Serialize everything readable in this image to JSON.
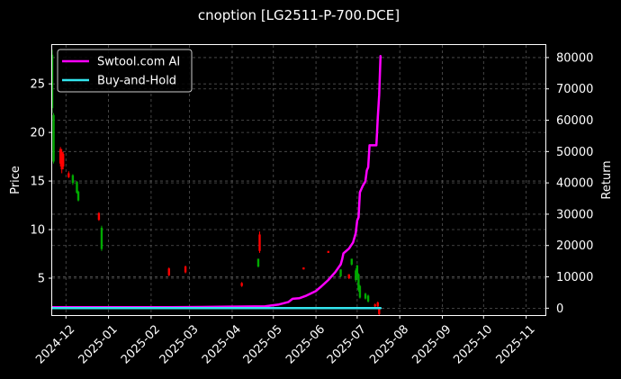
{
  "chart_data": {
    "type": "line",
    "title": "cnoption [LG2511-P-700.DCE]",
    "xlabel": "",
    "ylabel": "Price",
    "y2label": "Return",
    "x_ticks": [
      "2024-12",
      "2025-01",
      "2025-02",
      "2025-03",
      "2025-04",
      "2025-05",
      "2025-06",
      "2025-07",
      "2025-08",
      "2025-09",
      "2025-10",
      "2025-11"
    ],
    "xlim": [
      "2024-11-21",
      "2025-11-15"
    ],
    "ylim": [
      1.2,
      29.0
    ],
    "y_ticks": [
      5,
      10,
      15,
      20,
      25
    ],
    "y2lim": [
      -2200,
      84000
    ],
    "y2_ticks": [
      0,
      10000,
      20000,
      30000,
      40000,
      50000,
      60000,
      70000,
      80000
    ],
    "grid": true,
    "legend_position": "top-left",
    "colors": {
      "up": "#00aa00",
      "down": "#ff0000",
      "strategy": "#ff00ff",
      "buyhold": "#33e5ee",
      "background": "#000000",
      "grid": "#555555"
    },
    "series": [
      {
        "name": "Swtool.com AI",
        "axis": "right",
        "points": [
          [
            "2024-11-21",
            300
          ],
          [
            "2025-02-15",
            300
          ],
          [
            "2025-03-10",
            400
          ],
          [
            "2025-04-01",
            500
          ],
          [
            "2025-04-25",
            600
          ],
          [
            "2025-05-05",
            1200
          ],
          [
            "2025-05-12",
            2000
          ],
          [
            "2025-05-15",
            3000
          ],
          [
            "2025-05-20",
            3200
          ],
          [
            "2025-05-25",
            4000
          ],
          [
            "2025-06-01",
            5500
          ],
          [
            "2025-06-05",
            7000
          ],
          [
            "2025-06-10",
            9000
          ],
          [
            "2025-06-15",
            11500
          ],
          [
            "2025-06-19",
            14000
          ],
          [
            "2025-06-20",
            15500
          ],
          [
            "2025-06-21",
            17500
          ],
          [
            "2025-06-25",
            19000
          ],
          [
            "2025-06-28",
            21000
          ],
          [
            "2025-06-30",
            24000
          ],
          [
            "2025-07-01",
            28000
          ],
          [
            "2025-07-02",
            29000
          ],
          [
            "2025-07-03",
            37000
          ],
          [
            "2025-07-05",
            39000
          ],
          [
            "2025-07-07",
            40500
          ],
          [
            "2025-07-08",
            44000
          ],
          [
            "2025-07-09",
            45000
          ],
          [
            "2025-07-10",
            52000
          ],
          [
            "2025-07-15",
            52000
          ],
          [
            "2025-07-16",
            61000
          ],
          [
            "2025-07-17",
            68000
          ],
          [
            "2025-07-18",
            80500
          ]
        ]
      },
      {
        "name": "Buy-and-Hold",
        "axis": "right",
        "points": [
          [
            "2024-11-21",
            0
          ],
          [
            "2025-07-18",
            0
          ]
        ]
      }
    ],
    "candles": [
      {
        "date": "2024-11-21",
        "open": 22.5,
        "close": 28.0,
        "high": 28.5,
        "low": 22.0,
        "color": "up"
      },
      {
        "date": "2024-11-22",
        "open": 17.0,
        "close": 21.8,
        "high": 22.0,
        "low": 16.8,
        "color": "up"
      },
      {
        "date": "2024-11-27",
        "open": 18.3,
        "close": 16.8,
        "high": 18.5,
        "low": 16.5,
        "color": "down"
      },
      {
        "date": "2024-11-28",
        "open": 18.0,
        "close": 16.2,
        "high": 18.3,
        "low": 15.8,
        "color": "down"
      },
      {
        "date": "2024-11-29",
        "open": 17.8,
        "close": 16.5,
        "high": 18.0,
        "low": 16.2,
        "color": "down"
      },
      {
        "date": "2024-12-03",
        "open": 15.8,
        "close": 15.4,
        "high": 16.0,
        "low": 15.3,
        "color": "down"
      },
      {
        "date": "2024-12-06",
        "open": 14.8,
        "close": 15.6,
        "high": 15.7,
        "low": 14.6,
        "color": "up"
      },
      {
        "date": "2024-12-09",
        "open": 13.8,
        "close": 14.9,
        "high": 15.0,
        "low": 13.7,
        "color": "up"
      },
      {
        "date": "2024-12-10",
        "open": 13.0,
        "close": 13.9,
        "high": 14.0,
        "low": 12.9,
        "color": "up"
      },
      {
        "date": "2024-12-25",
        "open": 11.7,
        "close": 11.0,
        "high": 11.8,
        "low": 10.9,
        "color": "down"
      },
      {
        "date": "2024-12-27",
        "open": 8.0,
        "close": 10.2,
        "high": 10.4,
        "low": 7.8,
        "color": "up"
      },
      {
        "date": "2025-02-14",
        "open": 6.0,
        "close": 5.3,
        "high": 6.1,
        "low": 5.2,
        "color": "down"
      },
      {
        "date": "2025-02-26",
        "open": 6.2,
        "close": 5.6,
        "high": 6.3,
        "low": 5.5,
        "color": "down"
      },
      {
        "date": "2025-04-08",
        "open": 4.5,
        "close": 4.2,
        "high": 4.6,
        "low": 4.1,
        "color": "down"
      },
      {
        "date": "2025-04-20",
        "open": 6.2,
        "close": 7.0,
        "high": 7.0,
        "low": 6.1,
        "color": "up"
      },
      {
        "date": "2025-04-21",
        "open": 9.5,
        "close": 7.8,
        "high": 9.8,
        "low": 7.6,
        "color": "down"
      },
      {
        "date": "2025-05-23",
        "open": 6.1,
        "close": 5.9,
        "high": 6.1,
        "low": 5.9,
        "color": "down"
      },
      {
        "date": "2025-06-10",
        "open": 7.8,
        "close": 7.6,
        "high": 7.8,
        "low": 7.6,
        "color": "down"
      },
      {
        "date": "2025-06-19",
        "open": 5.2,
        "close": 5.9,
        "high": 5.9,
        "low": 5.1,
        "color": "up"
      },
      {
        "date": "2025-06-25",
        "open": 5.4,
        "close": 5.0,
        "high": 5.4,
        "low": 4.9,
        "color": "down"
      },
      {
        "date": "2025-06-27",
        "open": 6.4,
        "close": 7.0,
        "high": 7.0,
        "low": 6.3,
        "color": "up"
      },
      {
        "date": "2025-06-30",
        "open": 4.8,
        "close": 5.8,
        "high": 6.0,
        "low": 4.6,
        "color": "up"
      },
      {
        "date": "2025-07-01",
        "open": 5.2,
        "close": 6.3,
        "high": 6.4,
        "low": 5.0,
        "color": "up"
      },
      {
        "date": "2025-07-02",
        "open": 3.8,
        "close": 5.4,
        "high": 5.5,
        "low": 3.6,
        "color": "up"
      },
      {
        "date": "2025-07-03",
        "open": 3.0,
        "close": 4.2,
        "high": 4.3,
        "low": 2.9,
        "color": "up"
      },
      {
        "date": "2025-07-07",
        "open": 2.9,
        "close": 3.4,
        "high": 3.5,
        "low": 2.8,
        "color": "up"
      },
      {
        "date": "2025-07-09",
        "open": 2.6,
        "close": 3.2,
        "high": 3.3,
        "low": 2.5,
        "color": "up"
      },
      {
        "date": "2025-07-14",
        "open": 2.3,
        "close": 2.1,
        "high": 2.4,
        "low": 2.0,
        "color": "down"
      },
      {
        "date": "2025-07-16",
        "open": 2.5,
        "close": 2.1,
        "high": 2.6,
        "low": 2.0,
        "color": "down"
      },
      {
        "date": "2025-07-17",
        "open": 1.8,
        "close": 1.3,
        "high": 1.9,
        "low": 1.2,
        "color": "down"
      }
    ]
  }
}
